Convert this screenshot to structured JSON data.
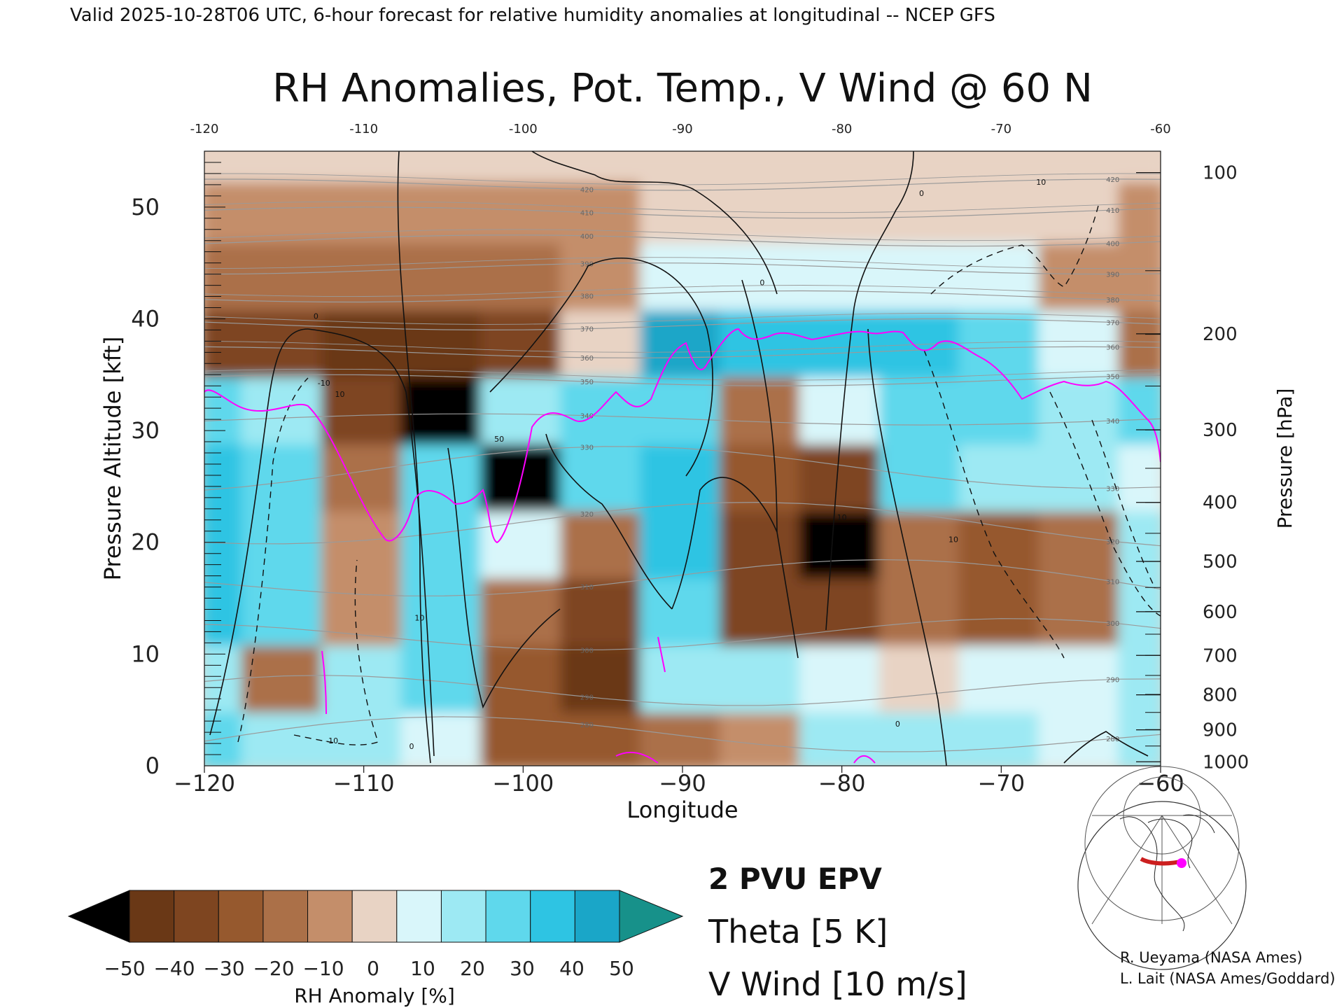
{
  "header": {
    "valid_line": "Valid 2025-10-28T06 UTC, 6-hour forecast for relative humidity anomalies at longitudinal -- NCEP GFS"
  },
  "chart_data": {
    "type": "heatmap",
    "title": "RH Anomalies, Pot. Temp., V Wind @ 60 N",
    "xlabel": "Longitude",
    "ylabel_left": "Pressure Altitude [kft]",
    "ylabel_right": "Pressure [hPa]",
    "xlim": [
      -120,
      -60
    ],
    "ylim": [
      0,
      55
    ],
    "x_ticks": [
      -120,
      -110,
      -100,
      -90,
      -80,
      -70,
      -60
    ],
    "x_tick_labels": [
      "−120",
      "−110",
      "−100",
      "−90",
      "−80",
      "−70",
      "−60"
    ],
    "top_tick_labels": [
      "-120",
      "-110",
      "-100",
      "-90",
      "-80",
      "-70",
      "-60"
    ],
    "y_ticks": [
      0,
      10,
      20,
      30,
      40,
      50
    ],
    "y_tick_labels": [
      "0",
      "10",
      "20",
      "30",
      "40",
      "50"
    ],
    "pressure_ticks": [
      {
        "hpa": 1000,
        "kft": 0.36
      },
      {
        "hpa": 900,
        "kft": 3.22
      },
      {
        "hpa": 800,
        "kft": 6.35
      },
      {
        "hpa": 700,
        "kft": 9.88
      },
      {
        "hpa": 600,
        "kft": 13.79
      },
      {
        "hpa": 500,
        "kft": 18.29
      },
      {
        "hpa": 400,
        "kft": 23.57
      },
      {
        "hpa": 300,
        "kft": 30.07
      },
      {
        "hpa": 200,
        "kft": 38.66
      },
      {
        "hpa": 100,
        "kft": 53.08
      }
    ],
    "pressure_tick_labels": [
      "1000",
      "900",
      "800",
      "700",
      "600",
      "500",
      "400",
      "300",
      "200",
      "100"
    ],
    "theta_levels": [
      280,
      290,
      300,
      310,
      320,
      330,
      340,
      350,
      360,
      370,
      380,
      390,
      400,
      410,
      420
    ],
    "theta_labels": [
      "280",
      "290",
      "300",
      "310",
      "320",
      "330",
      "340",
      "350",
      "360",
      "370",
      "380",
      "390",
      "400",
      "410",
      "420"
    ],
    "vwind_labels": [
      "0",
      "10",
      "-10",
      "0",
      "10",
      "-10",
      "50",
      "10",
      "0",
      "10",
      "0",
      "10",
      "0"
    ],
    "colorbar": {
      "label": "RH Anomaly [%]",
      "tick_labels": [
        "−50",
        "−40",
        "−30",
        "−20",
        "−10",
        "0",
        "10",
        "20",
        "30",
        "40",
        "50"
      ],
      "colors": [
        "#6a3816",
        "#7e4520",
        "#96592e",
        "#ab7048",
        "#c48e6a",
        "#e8d3c4",
        "#d9f6fa",
        "#9de9f3",
        "#5fd8ec",
        "#2ec4e3",
        "#1aa6c8"
      ],
      "under_color": "#000000",
      "over_color": "#17918a"
    },
    "rh_anomaly_grid": {
      "longitudes": [
        -120,
        -115,
        -110,
        -105,
        -100,
        -95,
        -90,
        -85,
        -80,
        -75,
        -70,
        -65,
        -60
      ],
      "altitudes_kft": [
        2,
        8,
        14,
        20,
        26,
        32,
        38,
        44,
        50,
        55
      ],
      "values_percent": [
        [
          25,
          20,
          22,
          8,
          -25,
          -30,
          -20,
          -5,
          15,
          18,
          15,
          5,
          15
        ],
        [
          20,
          -15,
          20,
          25,
          -30,
          -45,
          15,
          15,
          10,
          0,
          5,
          10,
          15
        ],
        [
          35,
          25,
          -10,
          30,
          -20,
          -40,
          25,
          -40,
          -40,
          -15,
          -25,
          -20,
          20
        ],
        [
          35,
          30,
          -10,
          30,
          5,
          -20,
          35,
          -40,
          -55,
          -20,
          -30,
          -20,
          15
        ],
        [
          35,
          30,
          -15,
          25,
          -55,
          30,
          40,
          -30,
          -40,
          25,
          20,
          15,
          10
        ],
        [
          30,
          20,
          -40,
          -60,
          20,
          30,
          30,
          -20,
          10,
          30,
          25,
          20,
          25
        ],
        [
          -40,
          -40,
          -45,
          -45,
          -40,
          0,
          45,
          40,
          35,
          35,
          30,
          5,
          -15
        ],
        [
          -15,
          -15,
          -20,
          -20,
          -20,
          -10,
          5,
          5,
          5,
          5,
          5,
          -10,
          -10
        ],
        [
          -5,
          -5,
          -5,
          -5,
          -5,
          -5,
          -3,
          -3,
          -3,
          -3,
          -3,
          -3,
          -5
        ],
        [
          0,
          0,
          0,
          0,
          0,
          0,
          0,
          0,
          0,
          0,
          0,
          0,
          0
        ]
      ]
    },
    "legend": [
      {
        "label": "2 PVU EPV",
        "color": "#ff00ff"
      },
      {
        "label": "Theta [5 K]",
        "color": "#a0a0a0"
      },
      {
        "label": "V Wind [10 m/s]",
        "color": "#111111"
      }
    ],
    "legend_placement": "bottom-center",
    "inset_map_placement": "bottom-right"
  },
  "credits": [
    "R. Ueyama (NASA Ames)",
    "L. Lait (NASA Ames/Goddard)"
  ],
  "colors": {
    "epv": "#ff00ff",
    "theta": "#9a9a9a",
    "vwind": "#111111",
    "locator_line": "#cc1f1f",
    "locator_point": "#ff00ff"
  }
}
